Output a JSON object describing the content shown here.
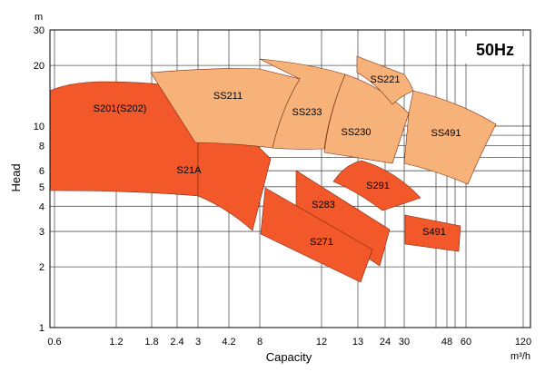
{
  "chart_data": {
    "type": "area",
    "title": "50Hz",
    "xlabel": "Capacity",
    "ylabel": "Head",
    "x_unit": "m³/h",
    "y_unit": "m",
    "x_scale": "log",
    "y_scale": "log",
    "ylim": [
      1,
      30
    ],
    "x_tick_labels": [
      "0.6",
      "1.2",
      "1.8",
      "2.4",
      "3",
      "4.2",
      "8",
      "12",
      "13",
      "24",
      "30",
      "48",
      "60",
      "120"
    ],
    "y_tick_labels": [
      "1",
      "2",
      "3",
      "4",
      "5",
      "6",
      "8",
      "10",
      "20",
      "30"
    ],
    "grid": true,
    "series": [
      {
        "name": "S201(S202)",
        "color": "#f2582a"
      },
      {
        "name": "S21A",
        "color": "#f2582a"
      },
      {
        "name": "SS211",
        "color": "#f7b27a"
      },
      {
        "name": "SS233",
        "color": "#f7b27a"
      },
      {
        "name": "SS230",
        "color": "#f7b27a"
      },
      {
        "name": "SS221",
        "color": "#f7b27a"
      },
      {
        "name": "SS491",
        "color": "#f7b27a"
      },
      {
        "name": "S291",
        "color": "#f2582a"
      },
      {
        "name": "S283",
        "color": "#f2582a"
      },
      {
        "name": "S271",
        "color": "#f2582a"
      },
      {
        "name": "S491",
        "color": "#f2582a"
      }
    ]
  }
}
